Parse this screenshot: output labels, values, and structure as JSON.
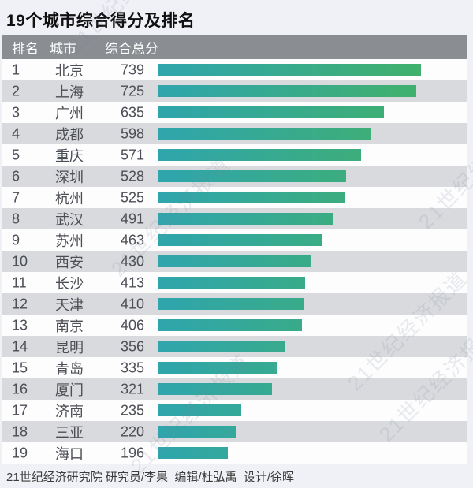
{
  "page": {
    "title": "19个城市综合得分及排名",
    "footer": "21世纪经济研究院 研究员/李果  编辑/杜弘禹  设计/徐晖",
    "watermark_text": "21世纪经济报道"
  },
  "table": {
    "headers": {
      "rank": "排名",
      "city": "城市",
      "score": "综合总分"
    }
  },
  "chart_data": {
    "type": "bar",
    "orientation": "horizontal",
    "title": "19个城市综合得分及排名",
    "categories": [
      "北京",
      "上海",
      "广州",
      "成都",
      "重庆",
      "深圳",
      "杭州",
      "武汉",
      "苏州",
      "西安",
      "长沙",
      "天津",
      "南京",
      "昆明",
      "青岛",
      "厦门",
      "济南",
      "三亚",
      "海口"
    ],
    "ranks": [
      1,
      2,
      3,
      4,
      5,
      6,
      7,
      8,
      9,
      10,
      11,
      12,
      13,
      14,
      15,
      16,
      17,
      18,
      19
    ],
    "values": [
      739,
      725,
      635,
      598,
      571,
      528,
      525,
      491,
      463,
      430,
      413,
      410,
      406,
      356,
      335,
      321,
      235,
      220,
      196
    ],
    "xlim": [
      0,
      739
    ],
    "grid": false,
    "legend": "none",
    "bar_gradient": [
      "#2FA5AD",
      "#41B06C"
    ]
  },
  "colors": {
    "page_bg": "#F0F1F6",
    "header_bg": "#8A8D91",
    "header_text": "#FFFFFF",
    "row_bg": "#FDFDFE",
    "row_alt_bg": "#D9DADD",
    "row_text": "#4B4E54",
    "title_text": "#111111",
    "footer_text": "#3C3C3C",
    "bar_start": "#2FA5AD",
    "bar_end": "#41B06C",
    "watermark": "#78849B"
  }
}
